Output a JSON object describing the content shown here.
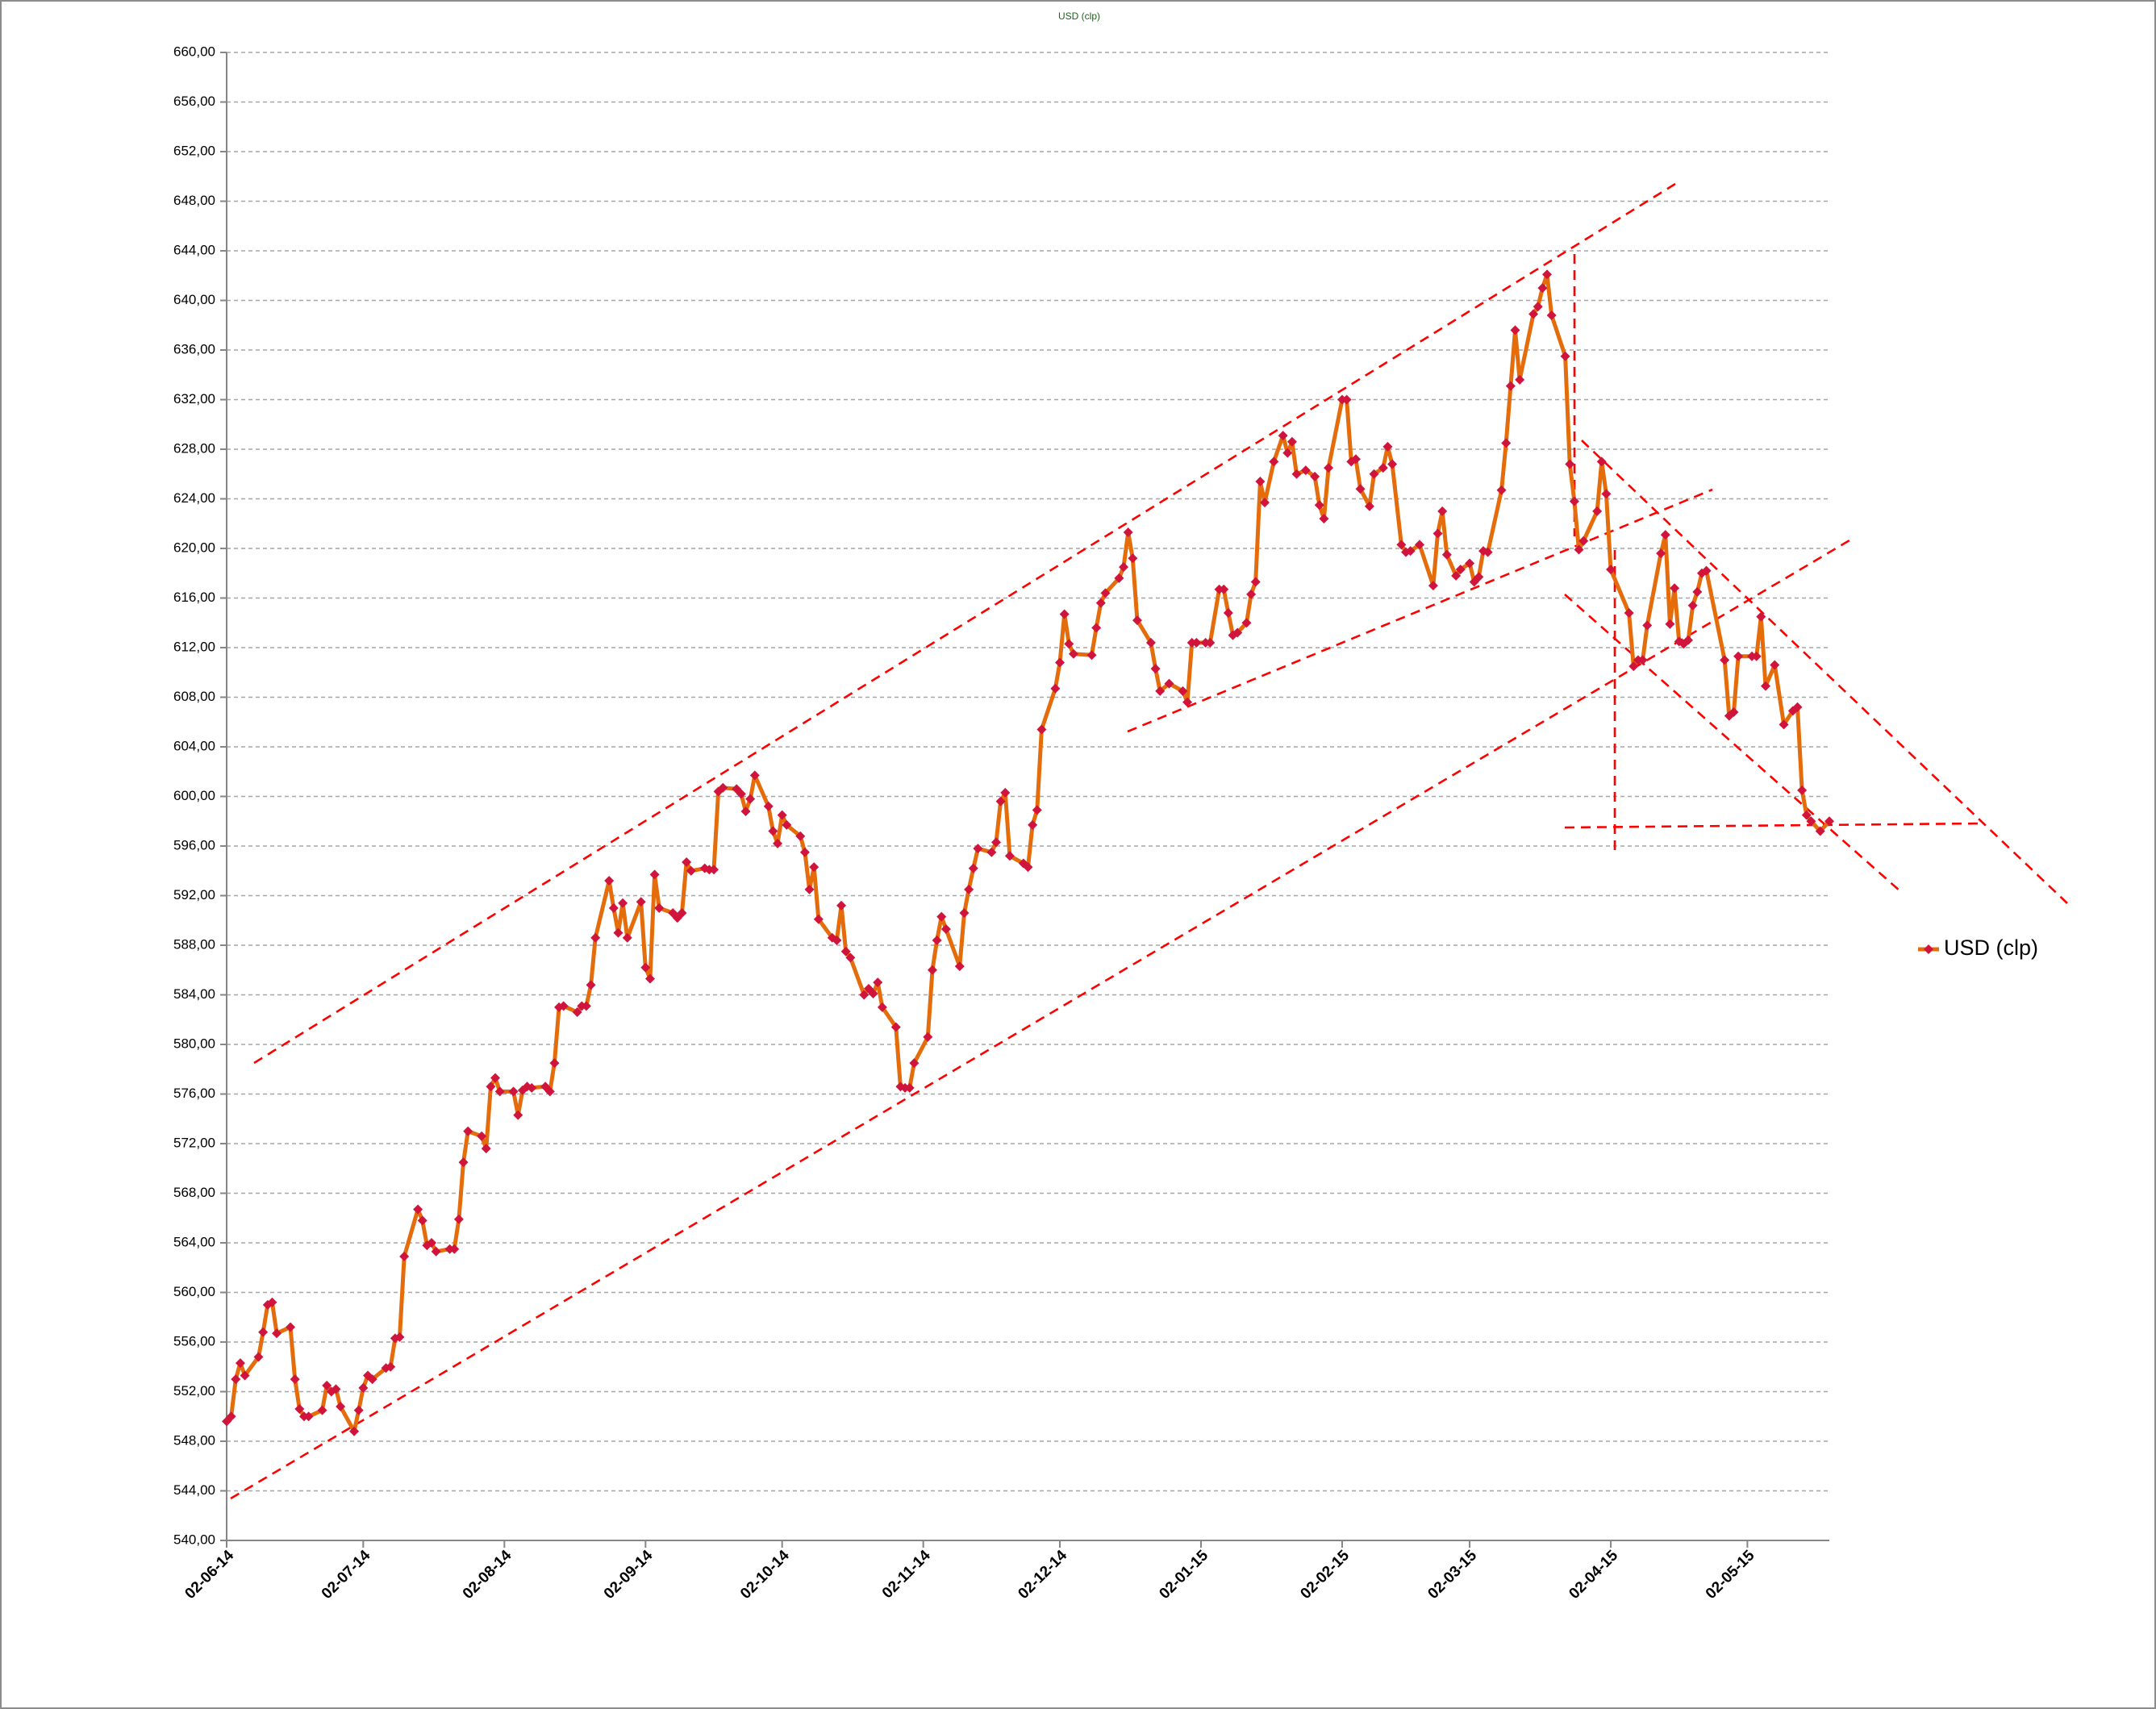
{
  "chart_data": {
    "type": "line",
    "title": "USD (clp)",
    "x": [
      "2014-06-02",
      "2014-06-03",
      "2014-06-04",
      "2014-06-05",
      "2014-06-06",
      "2014-06-09",
      "2014-06-10",
      "2014-06-11",
      "2014-06-12",
      "2014-06-13",
      "2014-06-16",
      "2014-06-17",
      "2014-06-18",
      "2014-06-19",
      "2014-06-20",
      "2014-06-23",
      "2014-06-24",
      "2014-06-25",
      "2014-06-26",
      "2014-06-27",
      "2014-06-30",
      "2014-07-01",
      "2014-07-02",
      "2014-07-03",
      "2014-07-04",
      "2014-07-07",
      "2014-07-08",
      "2014-07-09",
      "2014-07-10",
      "2014-07-11",
      "2014-07-14",
      "2014-07-15",
      "2014-07-16",
      "2014-07-17",
      "2014-07-18",
      "2014-07-21",
      "2014-07-22",
      "2014-07-23",
      "2014-07-24",
      "2014-07-25",
      "2014-07-28",
      "2014-07-29",
      "2014-07-30",
      "2014-07-31",
      "2014-08-01",
      "2014-08-04",
      "2014-08-05",
      "2014-08-06",
      "2014-08-07",
      "2014-08-08",
      "2014-08-11",
      "2014-08-12",
      "2014-08-13",
      "2014-08-14",
      "2014-08-15",
      "2014-08-18",
      "2014-08-19",
      "2014-08-20",
      "2014-08-21",
      "2014-08-22",
      "2014-08-25",
      "2014-08-26",
      "2014-08-27",
      "2014-08-28",
      "2014-08-29",
      "2014-09-01",
      "2014-09-02",
      "2014-09-03",
      "2014-09-04",
      "2014-09-05",
      "2014-09-08",
      "2014-09-09",
      "2014-09-10",
      "2014-09-11",
      "2014-09-12",
      "2014-09-15",
      "2014-09-16",
      "2014-09-17",
      "2014-09-18",
      "2014-09-19",
      "2014-09-22",
      "2014-09-23",
      "2014-09-24",
      "2014-09-25",
      "2014-09-26",
      "2014-09-29",
      "2014-09-30",
      "2014-10-01",
      "2014-10-02",
      "2014-10-03",
      "2014-10-06",
      "2014-10-07",
      "2014-10-08",
      "2014-10-09",
      "2014-10-10",
      "2014-10-13",
      "2014-10-14",
      "2014-10-15",
      "2014-10-16",
      "2014-10-17",
      "2014-10-20",
      "2014-10-21",
      "2014-10-22",
      "2014-10-23",
      "2014-10-24",
      "2014-10-27",
      "2014-10-28",
      "2014-10-29",
      "2014-10-30",
      "2014-10-31",
      "2014-11-03",
      "2014-11-04",
      "2014-11-05",
      "2014-11-06",
      "2014-11-07",
      "2014-11-10",
      "2014-11-11",
      "2014-11-12",
      "2014-11-13",
      "2014-11-14",
      "2014-11-17",
      "2014-11-18",
      "2014-11-19",
      "2014-11-20",
      "2014-11-21",
      "2014-11-24",
      "2014-11-25",
      "2014-11-26",
      "2014-11-27",
      "2014-11-28",
      "2014-12-01",
      "2014-12-02",
      "2014-12-03",
      "2014-12-04",
      "2014-12-05",
      "2014-12-09",
      "2014-12-10",
      "2014-12-11",
      "2014-12-12",
      "2014-12-15",
      "2014-12-16",
      "2014-12-17",
      "2014-12-18",
      "2014-12-19",
      "2014-12-22",
      "2014-12-23",
      "2014-12-24",
      "2014-12-26",
      "2014-12-29",
      "2014-12-30",
      "2014-12-31",
      "2015-01-01",
      "2015-01-03",
      "2015-01-04",
      "2015-01-06",
      "2015-01-07",
      "2015-01-08",
      "2015-01-09",
      "2015-01-10",
      "2015-01-12",
      "2015-01-13",
      "2015-01-14",
      "2015-01-15",
      "2015-01-16",
      "2015-01-18",
      "2015-01-20",
      "2015-01-21",
      "2015-01-22",
      "2015-01-23",
      "2015-01-25",
      "2015-01-27",
      "2015-01-28",
      "2015-01-29",
      "2015-01-30",
      "2015-02-02",
      "2015-02-03",
      "2015-02-04",
      "2015-02-05",
      "2015-02-06",
      "2015-02-08",
      "2015-02-09",
      "2015-02-11",
      "2015-02-12",
      "2015-02-13",
      "2015-02-15",
      "2015-02-16",
      "2015-02-17",
      "2015-02-19",
      "2015-02-22",
      "2015-02-23",
      "2015-02-24",
      "2015-02-25",
      "2015-02-27",
      "2015-02-28",
      "2015-03-02",
      "2015-03-03",
      "2015-03-04",
      "2015-03-05",
      "2015-03-06",
      "2015-03-09",
      "2015-03-10",
      "2015-03-11",
      "2015-03-12",
      "2015-03-13",
      "2015-03-16",
      "2015-03-17",
      "2015-03-18",
      "2015-03-19",
      "2015-03-20",
      "2015-03-23",
      "2015-03-24",
      "2015-03-25",
      "2015-03-26",
      "2015-03-27",
      "2015-03-30",
      "2015-03-31",
      "2015-04-01",
      "2015-04-02",
      "2015-04-06",
      "2015-04-07",
      "2015-04-08",
      "2015-04-09",
      "2015-04-10",
      "2015-04-13",
      "2015-04-14",
      "2015-04-15",
      "2015-04-16",
      "2015-04-17",
      "2015-04-18",
      "2015-04-19",
      "2015-04-20",
      "2015-04-21",
      "2015-04-22",
      "2015-04-23",
      "2015-04-27",
      "2015-04-28",
      "2015-04-29",
      "2015-04-30",
      "2015-05-03",
      "2015-05-04",
      "2015-05-05",
      "2015-05-06",
      "2015-05-08",
      "2015-05-10",
      "2015-05-12",
      "2015-05-13",
      "2015-05-14",
      "2015-05-15",
      "2015-05-16",
      "2015-05-18",
      "2015-05-20"
    ],
    "series": [
      {
        "name": "USD (clp)",
        "color": "#e46c0a",
        "marker_color": "#d0143c",
        "values": [
          549.6,
          550,
          553,
          554.3,
          553.3,
          554.8,
          556.8,
          559,
          559.2,
          556.7,
          557.2,
          553,
          550.6,
          550,
          550,
          550.5,
          552.5,
          552,
          552.2,
          550.8,
          548.8,
          550.5,
          552.3,
          553.3,
          553,
          553.9,
          554,
          556.3,
          556.4,
          562.9,
          566.7,
          565.8,
          563.8,
          564,
          563.3,
          563.5,
          563.5,
          565.9,
          570.5,
          573,
          572.6,
          571.6,
          576.6,
          577.3,
          576.2,
          576.2,
          574.3,
          576.3,
          576.6,
          576.5,
          576.6,
          576.2,
          578.5,
          583,
          583.1,
          582.6,
          583.1,
          583.1,
          584.8,
          588.6,
          593.2,
          591,
          589,
          591.4,
          588.6,
          591.5,
          586.2,
          585.3,
          593.7,
          591,
          590.6,
          590.2,
          590.6,
          594.7,
          594,
          594.2,
          594.1,
          594.1,
          600.4,
          600.7,
          600.6,
          600.2,
          598.8,
          599.8,
          601.7,
          599.2,
          597.2,
          596.2,
          598.5,
          597.7,
          596.8,
          595.5,
          592.5,
          594.3,
          590.1,
          588.6,
          588.4,
          591.2,
          587.5,
          587,
          584,
          584.5,
          584.1,
          585,
          583,
          581.4,
          576.6,
          576.5,
          576.5,
          578.5,
          580.6,
          586,
          588.4,
          590.3,
          589.3,
          586.3,
          590.6,
          592.5,
          594.2,
          595.8,
          595.5,
          596.3,
          599.6,
          600.3,
          595.2,
          594.6,
          594.3,
          597.7,
          598.9,
          605.4,
          608.7,
          610.8,
          614.7,
          612.3,
          611.5,
          611.4,
          613.6,
          615.6,
          616.4,
          617.6,
          618.5,
          621.3,
          619.2,
          614.2,
          612.4,
          610.3,
          608.5,
          609.1,
          608.5,
          607.6,
          612.4,
          612.4,
          612.4,
          612.4,
          616.7,
          616.7,
          614.8,
          613,
          613.2,
          614,
          616.3,
          617.3,
          625.4,
          623.7,
          627,
          629.1,
          627.7,
          628.6,
          626,
          626.3,
          625.8,
          623.5,
          622.4,
          626.5,
          632,
          632,
          627,
          627.2,
          624.8,
          623.4,
          626,
          626.5,
          628.2,
          626.8,
          620.3,
          619.7,
          619.8,
          620.3,
          617,
          621.2,
          623,
          619.5,
          617.8,
          618.3,
          618.8,
          617.3,
          617.7,
          619.8,
          619.7,
          624.7,
          628.5,
          633.1,
          637.6,
          633.6,
          638.9,
          639.5,
          641,
          642.1,
          638.8,
          635.5,
          626.8,
          623.8,
          619.9,
          620.6,
          623,
          627,
          624.4,
          618.3,
          614.8,
          610.5,
          611,
          611,
          613.8,
          619.6,
          621.1,
          613.9,
          616.8,
          612.5,
          612.3,
          612.6,
          615.4,
          616.5,
          618,
          618.2,
          611,
          606.5,
          606.8,
          611.3,
          611.3,
          611.3,
          614.5,
          608.9,
          610.6,
          605.8,
          606.9,
          607.2,
          600.5,
          598.5,
          598,
          597.2,
          598
        ]
      }
    ],
    "xlim": [
      "2014-06-02",
      "2015-05-20"
    ],
    "xticks": [
      {
        "value": "2014-06-02",
        "label": "02-06-14"
      },
      {
        "value": "2014-07-02",
        "label": "02-07-14"
      },
      {
        "value": "2014-08-02",
        "label": "02-08-14"
      },
      {
        "value": "2014-09-02",
        "label": "02-09-14"
      },
      {
        "value": "2014-10-02",
        "label": "02-10-14"
      },
      {
        "value": "2014-11-02",
        "label": "02-11-14"
      },
      {
        "value": "2014-12-02",
        "label": "02-12-14"
      },
      {
        "value": "2015-01-02",
        "label": "02-01-15"
      },
      {
        "value": "2015-02-02",
        "label": "02-02-15"
      },
      {
        "value": "2015-03-02",
        "label": "02-03-15"
      },
      {
        "value": "2015-04-02",
        "label": "02-04-15"
      },
      {
        "value": "2015-05-02",
        "label": "02-05-15"
      }
    ],
    "ylim": [
      540,
      660
    ],
    "yticks": [
      {
        "value": 540,
        "label": "540,00"
      },
      {
        "value": 544,
        "label": "544,00"
      },
      {
        "value": 548,
        "label": "548,00"
      },
      {
        "value": 552,
        "label": "552,00"
      },
      {
        "value": 556,
        "label": "556,00"
      },
      {
        "value": 560,
        "label": "560,00"
      },
      {
        "value": 564,
        "label": "564,00"
      },
      {
        "value": 568,
        "label": "568,00"
      },
      {
        "value": 572,
        "label": "572,00"
      },
      {
        "value": 576,
        "label": "576,00"
      },
      {
        "value": 580,
        "label": "580,00"
      },
      {
        "value": 584,
        "label": "584,00"
      },
      {
        "value": 588,
        "label": "588,00"
      },
      {
        "value": 592,
        "label": "592,00"
      },
      {
        "value": 596,
        "label": "596,00"
      },
      {
        "value": 600,
        "label": "600,00"
      },
      {
        "value": 604,
        "label": "604,00"
      },
      {
        "value": 608,
        "label": "608,00"
      },
      {
        "value": 612,
        "label": "612,00"
      },
      {
        "value": 616,
        "label": "616,00"
      },
      {
        "value": 620,
        "label": "620,00"
      },
      {
        "value": 624,
        "label": "624,00"
      },
      {
        "value": 628,
        "label": "628,00"
      },
      {
        "value": 632,
        "label": "632,00"
      },
      {
        "value": 636,
        "label": "636,00"
      },
      {
        "value": 640,
        "label": "640,00"
      },
      {
        "value": 644,
        "label": "644,00"
      },
      {
        "value": 648,
        "label": "648,00"
      },
      {
        "value": 652,
        "label": "652,00"
      },
      {
        "value": 656,
        "label": "656,00"
      },
      {
        "value": 660,
        "label": "660,00"
      }
    ],
    "grid": true,
    "legend": "right"
  }
}
